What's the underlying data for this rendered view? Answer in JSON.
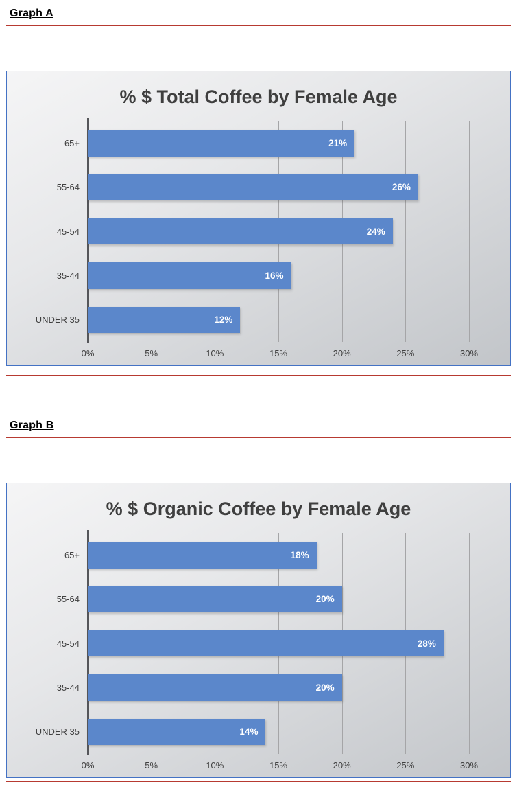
{
  "document": {
    "sections": [
      {
        "heading": "Graph A"
      },
      {
        "heading": "Graph B"
      }
    ]
  },
  "style": {
    "bar_color": "#5B87CB",
    "chart_border_color": "#4472C4",
    "divider_color": "#B73A31",
    "title_color": "#3F3F3F"
  },
  "chart_data": [
    {
      "type": "bar",
      "orientation": "horizontal",
      "title": "% $ Total Coffee by Female Age",
      "categories": [
        "65+",
        "55-64",
        "45-54",
        "35-44",
        "UNDER 35"
      ],
      "values": [
        21,
        26,
        24,
        16,
        12
      ],
      "value_labels": [
        "21%",
        "26%",
        "24%",
        "16%",
        "12%"
      ],
      "xlabel": "",
      "ylabel": "",
      "xlim": [
        0,
        30
      ],
      "xticks": [
        0,
        5,
        10,
        15,
        20,
        25,
        30
      ],
      "xtick_labels": [
        "0%",
        "5%",
        "10%",
        "15%",
        "20%",
        "25%",
        "30%"
      ],
      "grid": true,
      "legend": false,
      "data_label_position": "inside-end"
    },
    {
      "type": "bar",
      "orientation": "horizontal",
      "title": "% $ Organic Coffee by Female Age",
      "categories": [
        "65+",
        "55-64",
        "45-54",
        "35-44",
        "UNDER 35"
      ],
      "values": [
        18,
        20,
        28,
        20,
        14
      ],
      "value_labels": [
        "18%",
        "20%",
        "28%",
        "20%",
        "14%"
      ],
      "xlabel": "",
      "ylabel": "",
      "xlim": [
        0,
        30
      ],
      "xticks": [
        0,
        5,
        10,
        15,
        20,
        25,
        30
      ],
      "xtick_labels": [
        "0%",
        "5%",
        "10%",
        "15%",
        "20%",
        "25%",
        "30%"
      ],
      "grid": true,
      "legend": false,
      "data_label_position": "inside-end"
    }
  ]
}
